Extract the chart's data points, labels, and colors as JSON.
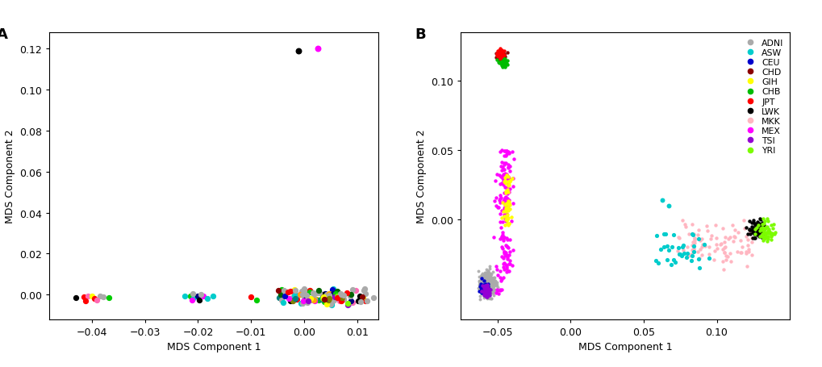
{
  "panel_A": {
    "title": "A",
    "xlabel": "MDS Component 1",
    "ylabel": "MDS Component 2",
    "xlim": [
      -0.048,
      0.014
    ],
    "ylim": [
      -0.012,
      0.128
    ],
    "xticks": [
      -0.04,
      -0.03,
      -0.02,
      -0.01,
      0.0,
      0.01
    ],
    "yticks": [
      0.0,
      0.02,
      0.04,
      0.06,
      0.08,
      0.1,
      0.12
    ]
  },
  "panel_B": {
    "title": "B",
    "xlabel": "MDS Component 1",
    "ylabel": "MDS Component 2",
    "xlim": [
      -0.075,
      0.15
    ],
    "ylim": [
      -0.072,
      0.135
    ],
    "xticks": [
      -0.05,
      0.0,
      0.05,
      0.1
    ],
    "yticks": [
      0.0,
      0.05,
      0.1
    ],
    "legend_entries": [
      {
        "label": "ADNI",
        "color": "#aaaaaa"
      },
      {
        "label": "ASW",
        "color": "#00cccc"
      },
      {
        "label": "CEU",
        "color": "#0000cc"
      },
      {
        "label": "CHD",
        "color": "#8b0000"
      },
      {
        "label": "GIH",
        "color": "#ffff00"
      },
      {
        "label": "CHB",
        "color": "#00bb00"
      },
      {
        "label": "JPT",
        "color": "#ff0000"
      },
      {
        "label": "LWK",
        "color": "#000000"
      },
      {
        "label": "MKK",
        "color": "#ffb6c1"
      },
      {
        "label": "MEX",
        "color": "#ff00ff"
      },
      {
        "label": "TSI",
        "color": "#9400d3"
      },
      {
        "label": "YRI",
        "color": "#7cfc00"
      }
    ]
  },
  "colors_A": {
    "gray": "#aaaaaa",
    "red": "#ff0000",
    "green": "#00cc00",
    "blue": "#0000cc",
    "yellow": "#ffff00",
    "magenta": "#ff00ff",
    "cyan": "#00cccc",
    "pink": "#ff69b4",
    "black": "#000000",
    "orange": "#ffa500",
    "darkred": "#8b0000",
    "dkgreen": "#006400",
    "purple": "#9400d3",
    "olive": "#808000",
    "teal": "#008080",
    "navy": "#000080",
    "lime": "#7cfc00"
  },
  "background_color": "#ffffff",
  "font_size": 9
}
